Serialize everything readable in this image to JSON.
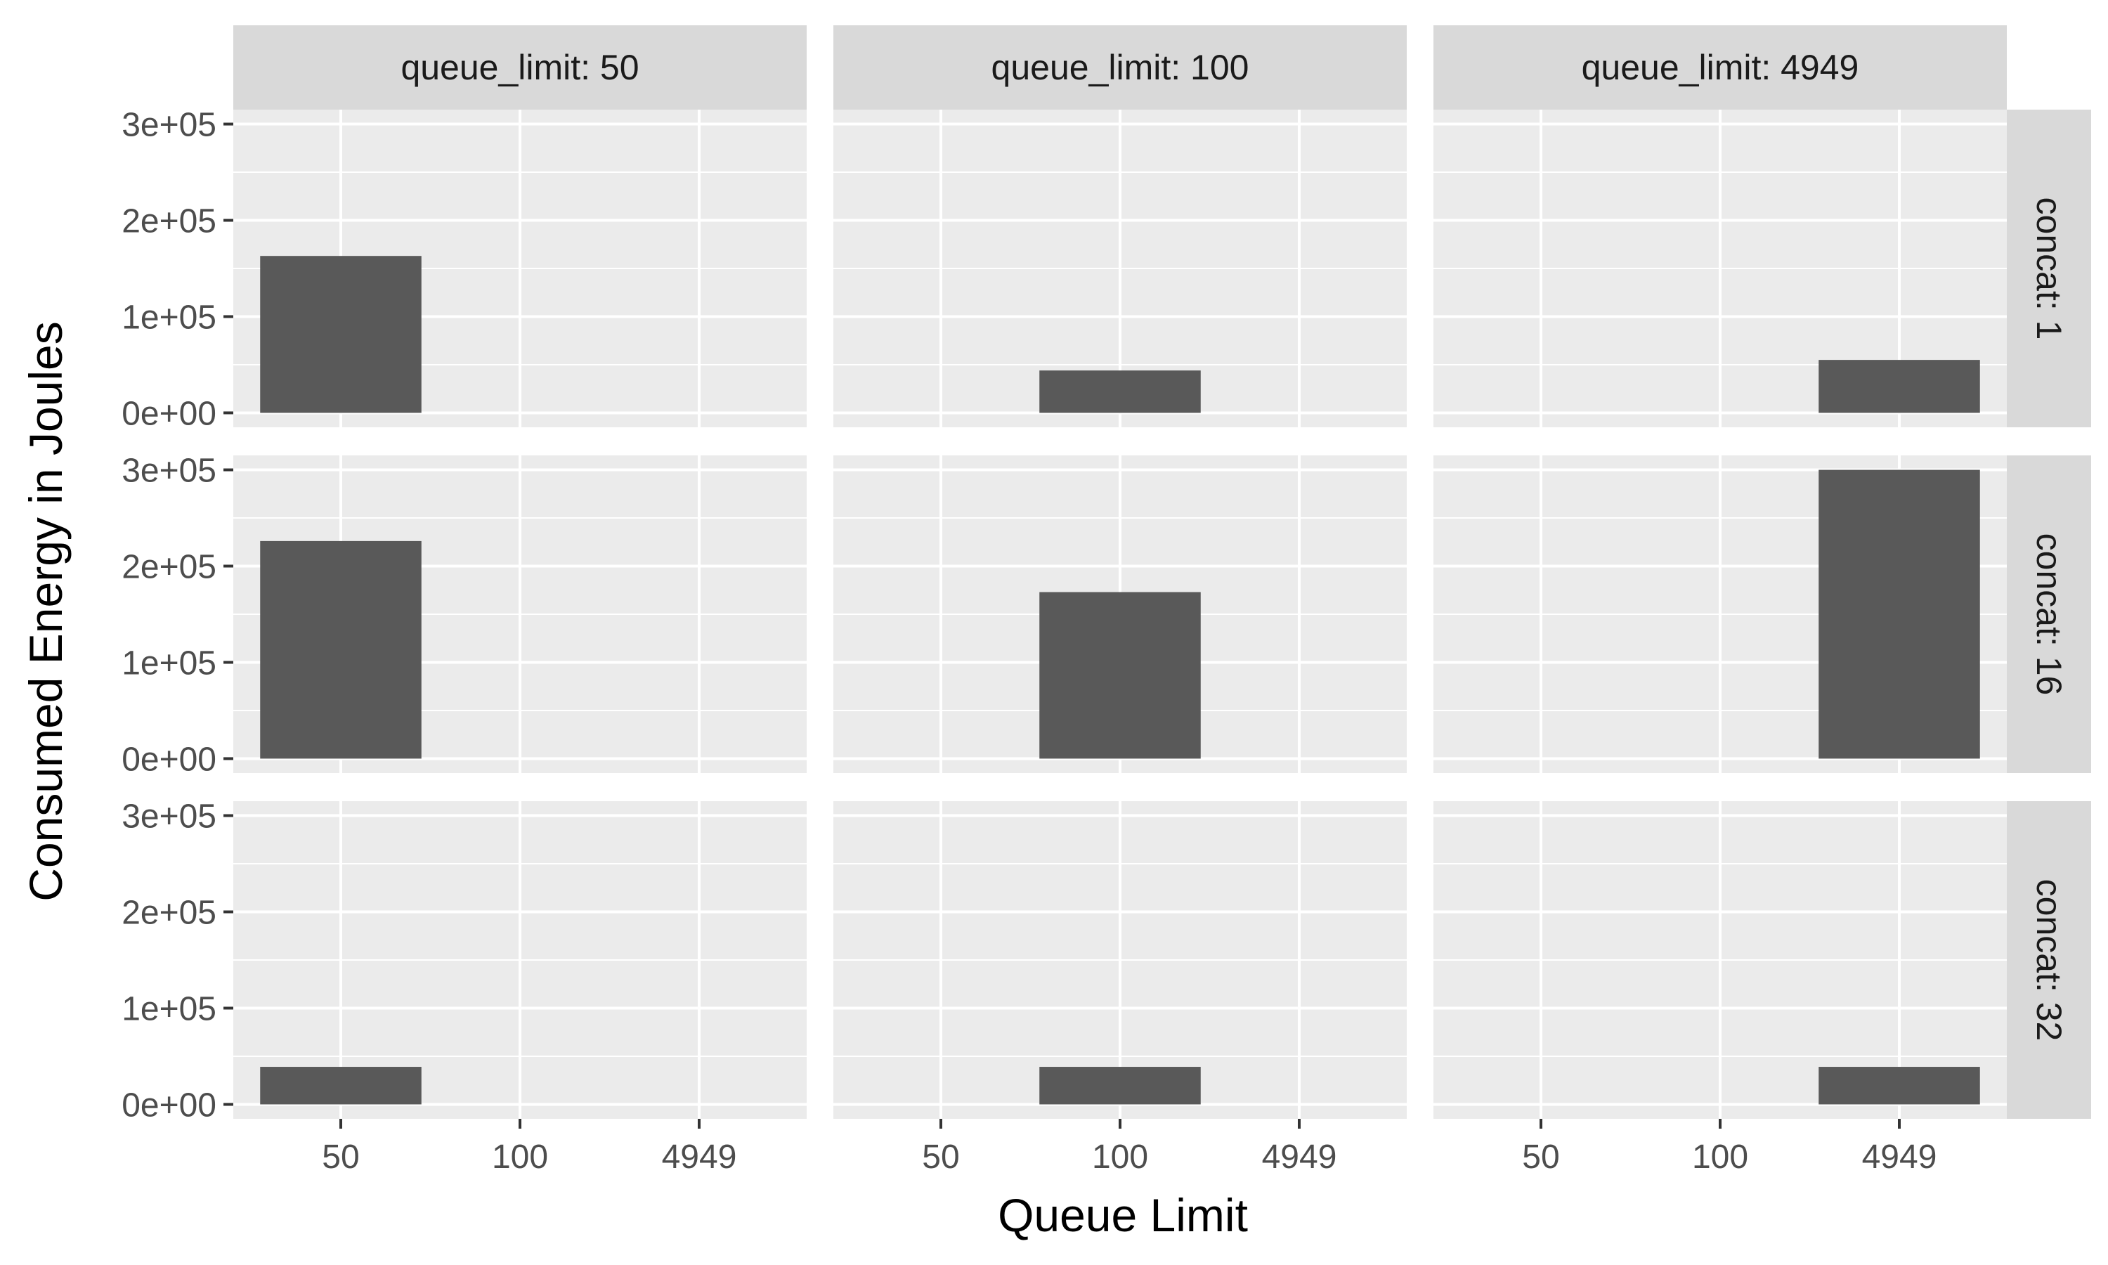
{
  "chart_data": {
    "type": "bar",
    "xlabel": "Queue Limit",
    "ylabel": "Consumed Energy in Joules",
    "categories": [
      "50",
      "100",
      "4949"
    ],
    "ylim": [
      -15000,
      315000
    ],
    "y_ticks": [
      0,
      100000,
      200000,
      300000
    ],
    "y_tick_labels": [
      "0e+00",
      "1e+05",
      "2e+05",
      "3e+05"
    ],
    "grid": true,
    "facet_columns": [
      {
        "label": "queue_limit: 50",
        "category": "50"
      },
      {
        "label": "queue_limit: 100",
        "category": "100"
      },
      {
        "label": "queue_limit: 4949",
        "category": "4949"
      }
    ],
    "facet_rows": [
      {
        "label": "concat: 1",
        "values": [
          163000,
          44000,
          55000
        ]
      },
      {
        "label": "concat: 16",
        "values": [
          226000,
          173000,
          300000
        ]
      },
      {
        "label": "concat: 32",
        "values": [
          39000,
          39000,
          39000
        ]
      }
    ],
    "colors": {
      "panel": "#ebebeb",
      "strip": "#d9d9d9",
      "bar": "#595959",
      "grid": "#ffffff"
    }
  }
}
